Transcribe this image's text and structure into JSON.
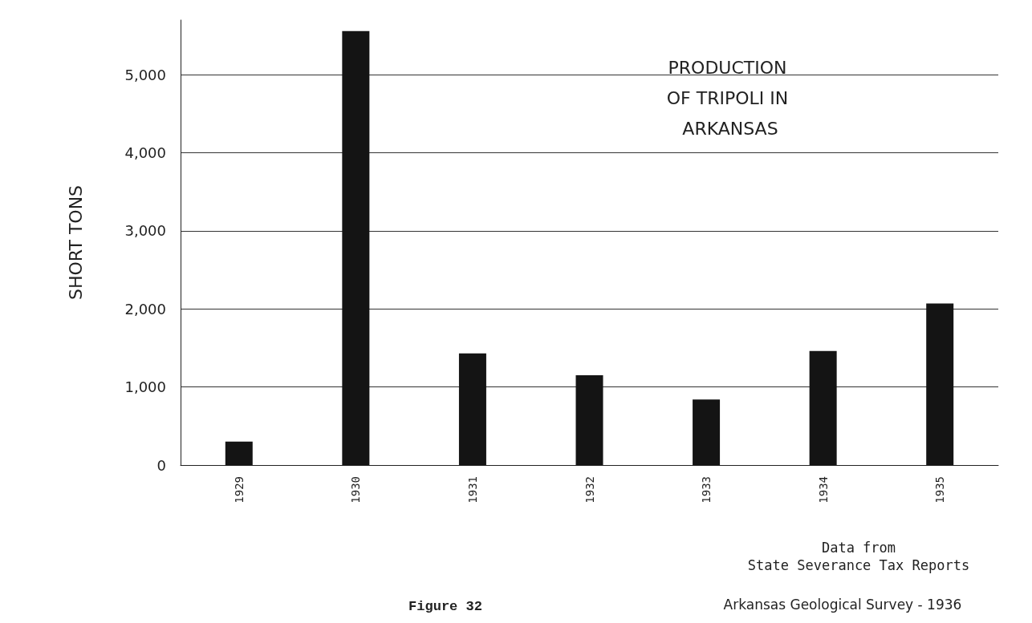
{
  "chart_data": {
    "type": "bar",
    "title": "PRODUCTION OF TRIPOLI IN ARKANSAS",
    "ylabel": "SHORT TONS",
    "categories": [
      "1929",
      "1930",
      "1931",
      "1932",
      "1933",
      "1934",
      "1935"
    ],
    "values": [
      300,
      5560,
      1430,
      1150,
      840,
      1460,
      2070
    ],
    "color": "#141414",
    "ylim": [
      0,
      5700
    ],
    "yticks": [
      0,
      {
        "value": 1000,
        "label": "1,000"
      },
      {
        "value": 2000,
        "label": "2,000"
      },
      {
        "value": 3000,
        "label": "3,000"
      },
      {
        "value": 4000,
        "label": "4,000"
      },
      {
        "value": 5000,
        "label": "5,000"
      }
    ],
    "grid": "y",
    "annotations": [
      "Data from\nState Severance Tax Reports",
      "Figure 32",
      "Arkansas Geological Survey - 1936"
    ]
  }
}
